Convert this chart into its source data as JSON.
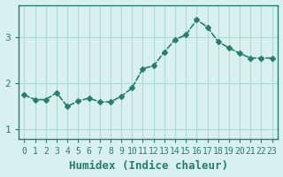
{
  "x": [
    0,
    1,
    2,
    3,
    4,
    5,
    6,
    7,
    8,
    9,
    10,
    11,
    12,
    13,
    14,
    15,
    16,
    17,
    18,
    19,
    20,
    21,
    22,
    23
  ],
  "y": [
    1.75,
    1.65,
    1.65,
    1.8,
    1.5,
    1.62,
    1.68,
    1.6,
    1.6,
    1.72,
    1.9,
    2.32,
    2.38,
    2.68,
    2.95,
    3.05,
    3.38,
    3.22,
    2.9,
    2.77,
    2.65,
    2.55,
    2.55,
    2.55
  ],
  "line_color": "#2a7d6e",
  "marker": "D",
  "marker_size": 3,
  "background_color": "#d8f0ee",
  "grid_color": "#b0d8d4",
  "axis_color": "#2a7d6e",
  "xlabel": "Humidex (Indice chaleur)",
  "xlabel_fontsize": 9,
  "tick_fontsize": 7,
  "yticks": [
    1,
    2,
    3
  ],
  "ylim": [
    0.8,
    3.7
  ],
  "xlim": [
    -0.5,
    23.5
  ]
}
